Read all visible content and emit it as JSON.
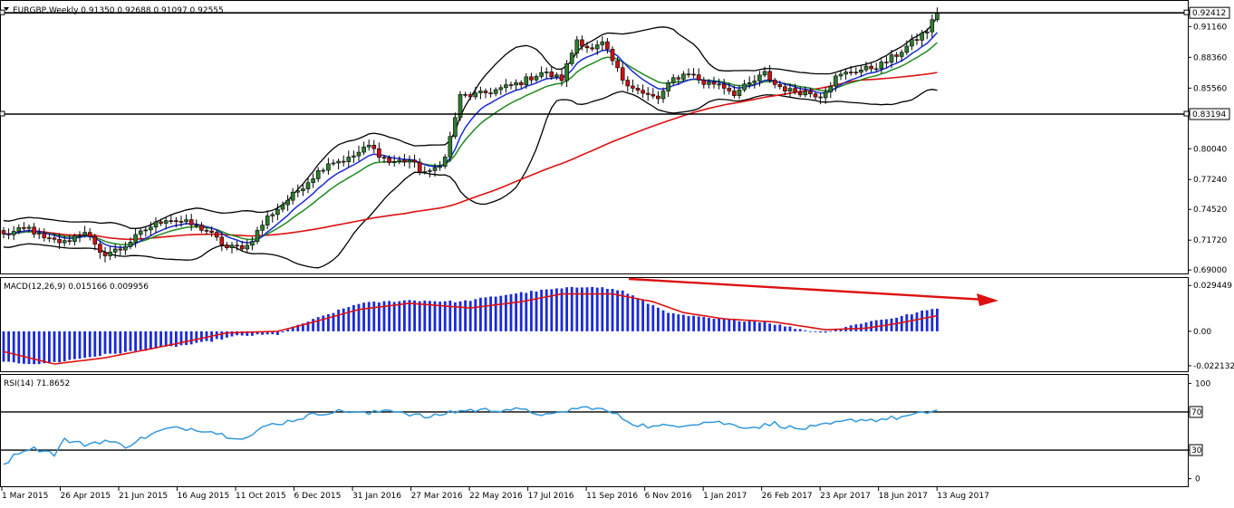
{
  "header": {
    "symbol_line": "EURGBP,Weekly  0.91350 0.92688 0.91097 0.92555"
  },
  "colors": {
    "bull": "#2e7d2e",
    "bear": "#cc1111",
    "ma_blue": "#1a2bd6",
    "ma_green": "#1f8a1f",
    "ma_red": "#dd1111",
    "bollinger": "#000000",
    "macd_hist": "#1a2bd6",
    "macd_signal": "#dd1111",
    "rsi_line": "#3399dd",
    "arrow": "#dd1111"
  },
  "chart_data": [
    {
      "type": "candlestick",
      "name": "price",
      "title": "EURGBP,Weekly",
      "header_values": [
        "0.91350",
        "0.92688",
        "0.91097",
        "0.92555"
      ],
      "y_ticks": [
        "0.91160",
        "0.88360",
        "0.85560",
        "0.80040",
        "0.77240",
        "0.74520",
        "0.71720",
        "0.69000"
      ],
      "ylim": [
        0.6885,
        0.9325
      ],
      "price_labels": [
        "0.92412",
        "0.83194"
      ],
      "horizontal_levels": [
        0.92412,
        0.83194
      ],
      "x_labels": [
        "1 Mar 2015",
        "26 Apr 2015",
        "21 Jun 2015",
        "16 Aug 2015",
        "11 Oct 2015",
        "6 Dec 2015",
        "31 Jan 2016",
        "27 Mar 2016",
        "22 May 2016",
        "17 Jul 2016",
        "11 Sep 2016",
        "6 Nov 2016",
        "1 Jan 2017",
        "26 Feb 2017",
        "23 Apr 2017",
        "18 Jun 2017",
        "13 Aug 2017"
      ],
      "close_anchors": [
        [
          0,
          0.722
        ],
        [
          5,
          0.728
        ],
        [
          8,
          0.718
        ],
        [
          12,
          0.715
        ],
        [
          16,
          0.726
        ],
        [
          19,
          0.704
        ],
        [
          23,
          0.709
        ],
        [
          28,
          0.727
        ],
        [
          32,
          0.737
        ],
        [
          36,
          0.733
        ],
        [
          40,
          0.726
        ],
        [
          44,
          0.71
        ],
        [
          48,
          0.712
        ],
        [
          52,
          0.738
        ],
        [
          56,
          0.754
        ],
        [
          60,
          0.771
        ],
        [
          64,
          0.788
        ],
        [
          68,
          0.791
        ],
        [
          72,
          0.803
        ],
        [
          76,
          0.788
        ],
        [
          80,
          0.79
        ],
        [
          82,
          0.781
        ],
        [
          84,
          0.778
        ],
        [
          87,
          0.792
        ],
        [
          90,
          0.848
        ],
        [
          94,
          0.85
        ],
        [
          98,
          0.855
        ],
        [
          102,
          0.861
        ],
        [
          106,
          0.87
        ],
        [
          110,
          0.864
        ],
        [
          113,
          0.9
        ],
        [
          116,
          0.89
        ],
        [
          118,
          0.896
        ],
        [
          120,
          0.88
        ],
        [
          122,
          0.864
        ],
        [
          126,
          0.85
        ],
        [
          129,
          0.846
        ],
        [
          132,
          0.864
        ],
        [
          135,
          0.87
        ],
        [
          138,
          0.86
        ],
        [
          141,
          0.86
        ],
        [
          144,
          0.851
        ],
        [
          148,
          0.862
        ],
        [
          150,
          0.869
        ],
        [
          152,
          0.859
        ],
        [
          155,
          0.853
        ],
        [
          158,
          0.852
        ],
        [
          161,
          0.849
        ],
        [
          164,
          0.865
        ],
        [
          167,
          0.871
        ],
        [
          170,
          0.873
        ],
        [
          173,
          0.877
        ],
        [
          176,
          0.886
        ],
        [
          179,
          0.897
        ],
        [
          182,
          0.908
        ],
        [
          184,
          0.924
        ]
      ],
      "series": [
        {
          "name": "MA blue"
        },
        {
          "name": "MA green"
        },
        {
          "name": "MA red"
        },
        {
          "name": "Bollinger bands"
        }
      ]
    },
    {
      "type": "histogram",
      "name": "macd",
      "label": "MACD(12,26,9) 0.015166 0.009956",
      "y_ticks": [
        "0.029449",
        "0.00",
        "-0.022132"
      ],
      "ylim": [
        -0.0245,
        0.0325
      ],
      "anchors": [
        [
          0,
          -0.02
        ],
        [
          8,
          -0.021
        ],
        [
          20,
          -0.015
        ],
        [
          38,
          -0.008
        ],
        [
          46,
          -0.003
        ],
        [
          54,
          -0.002
        ],
        [
          58,
          0.004
        ],
        [
          70,
          0.018
        ],
        [
          80,
          0.02
        ],
        [
          90,
          0.019
        ],
        [
          100,
          0.024
        ],
        [
          108,
          0.027
        ],
        [
          116,
          0.029
        ],
        [
          122,
          0.026
        ],
        [
          127,
          0.018
        ],
        [
          132,
          0.011
        ],
        [
          140,
          0.008
        ],
        [
          150,
          0.006
        ],
        [
          156,
          0.002
        ],
        [
          161,
          -0.001
        ],
        [
          165,
          0.002
        ],
        [
          170,
          0.006
        ],
        [
          176,
          0.009
        ],
        [
          184,
          0.015
        ]
      ],
      "signal_anchors": [
        [
          0,
          -0.013
        ],
        [
          10,
          -0.021
        ],
        [
          20,
          -0.017
        ],
        [
          34,
          -0.008
        ],
        [
          44,
          -0.001
        ],
        [
          54,
          0.0
        ],
        [
          60,
          0.005
        ],
        [
          70,
          0.014
        ],
        [
          80,
          0.018
        ],
        [
          92,
          0.015
        ],
        [
          102,
          0.019
        ],
        [
          110,
          0.024
        ],
        [
          120,
          0.024
        ],
        [
          128,
          0.019
        ],
        [
          134,
          0.012
        ],
        [
          142,
          0.008
        ],
        [
          152,
          0.006
        ],
        [
          162,
          0.001
        ],
        [
          170,
          0.002
        ],
        [
          176,
          0.005
        ],
        [
          184,
          0.01
        ]
      ]
    },
    {
      "type": "line",
      "name": "rsi",
      "label": "RSI(14) 71.8652",
      "y_ticks": [
        "100",
        "70",
        "30",
        "0"
      ],
      "ylim": [
        -7,
        107
      ],
      "levels": [
        70,
        30
      ],
      "anchors": [
        [
          0,
          15
        ],
        [
          3,
          28
        ],
        [
          5,
          32
        ],
        [
          8,
          30
        ],
        [
          10,
          26
        ],
        [
          12,
          41
        ],
        [
          14,
          38
        ],
        [
          16,
          36
        ],
        [
          20,
          40
        ],
        [
          24,
          34
        ],
        [
          28,
          44
        ],
        [
          32,
          52
        ],
        [
          36,
          53
        ],
        [
          40,
          51
        ],
        [
          44,
          45
        ],
        [
          48,
          43
        ],
        [
          52,
          56
        ],
        [
          56,
          60
        ],
        [
          60,
          66
        ],
        [
          64,
          70
        ],
        [
          68,
          71
        ],
        [
          72,
          68
        ],
        [
          76,
          73
        ],
        [
          80,
          68
        ],
        [
          84,
          64
        ],
        [
          88,
          70
        ],
        [
          92,
          72
        ],
        [
          96,
          72
        ],
        [
          100,
          73
        ],
        [
          104,
          70
        ],
        [
          108,
          66
        ],
        [
          112,
          73
        ],
        [
          116,
          75
        ],
        [
          120,
          69
        ],
        [
          124,
          58
        ],
        [
          128,
          54
        ],
        [
          132,
          56
        ],
        [
          136,
          58
        ],
        [
          140,
          60
        ],
        [
          144,
          56
        ],
        [
          148,
          54
        ],
        [
          152,
          58
        ],
        [
          156,
          52
        ],
        [
          160,
          54
        ],
        [
          164,
          58
        ],
        [
          168,
          62
        ],
        [
          172,
          62
        ],
        [
          176,
          64
        ],
        [
          180,
          67
        ],
        [
          184,
          71.9
        ]
      ]
    }
  ]
}
